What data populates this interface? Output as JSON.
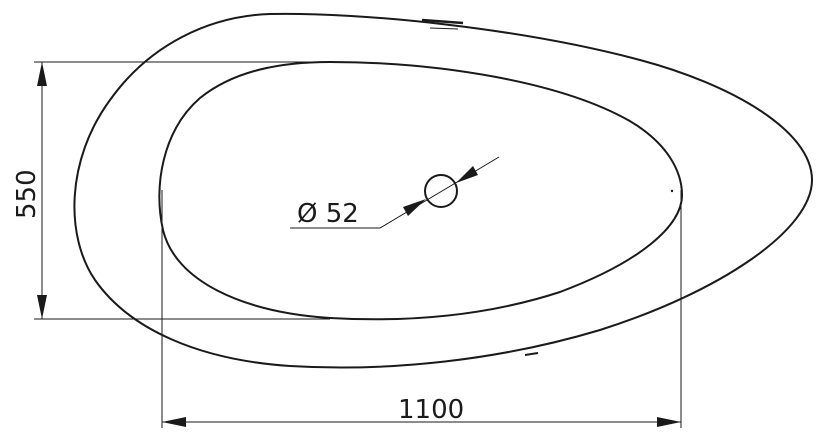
{
  "dimensions": {
    "height_label": "550",
    "width_label": "1100",
    "drain_diameter_label": "Ø 52"
  },
  "colors": {
    "line": "#1a1a1a",
    "background": "#ffffff"
  }
}
